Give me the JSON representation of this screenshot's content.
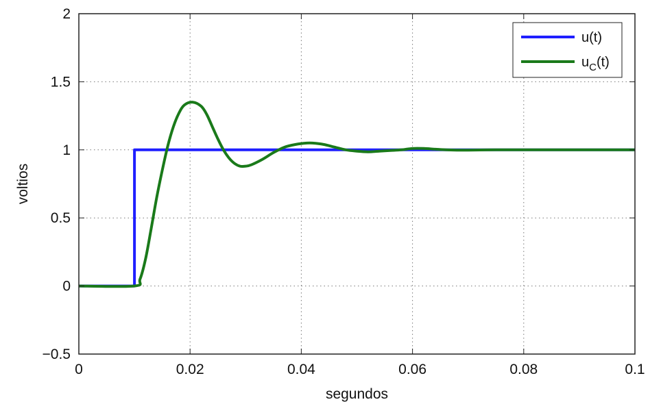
{
  "chart_data": {
    "type": "line",
    "title": "",
    "xlabel": "segundos",
    "ylabel": "voltios",
    "xlim": [
      0,
      0.1
    ],
    "ylim": [
      -0.5,
      2
    ],
    "x_ticks": [
      0,
      0.02,
      0.04,
      0.06,
      0.08,
      0.1
    ],
    "x_tick_labels": [
      "0",
      "0.02",
      "0.04",
      "0.06",
      "0.08",
      "0.1"
    ],
    "y_ticks": [
      -0.5,
      0,
      0.5,
      1,
      1.5,
      2
    ],
    "y_tick_labels": [
      "−0.5",
      "0",
      "0.5",
      "1",
      "1.5",
      "2"
    ],
    "grid": true,
    "legend_position": "top-right",
    "series": [
      {
        "name": "u(t)",
        "color": "#1f1fff",
        "x": [
          0,
          0.01,
          0.01,
          0.1
        ],
        "y": [
          0,
          0,
          1,
          1
        ]
      },
      {
        "name": "u_C(t)",
        "legend_main": "u",
        "legend_sub": "C",
        "legend_tail": "(t)",
        "color": "#1a7a1a",
        "x": [
          0,
          0.01,
          0.011,
          0.012,
          0.013,
          0.014,
          0.015,
          0.016,
          0.017,
          0.018,
          0.019,
          0.0205,
          0.022,
          0.023,
          0.024,
          0.025,
          0.026,
          0.027,
          0.028,
          0.029,
          0.03,
          0.031,
          0.033,
          0.035,
          0.037,
          0.039,
          0.041,
          0.042,
          0.044,
          0.046,
          0.048,
          0.05,
          0.052,
          0.054,
          0.056,
          0.058,
          0.06,
          0.062,
          0.064,
          0.066,
          0.068,
          0.07,
          0.075,
          0.08,
          0.09,
          0.1
        ],
        "y": [
          0,
          0,
          0.05,
          0.2,
          0.42,
          0.65,
          0.85,
          1.03,
          1.17,
          1.27,
          1.33,
          1.35,
          1.32,
          1.26,
          1.17,
          1.08,
          1.0,
          0.94,
          0.9,
          0.88,
          0.88,
          0.89,
          0.93,
          0.98,
          1.02,
          1.04,
          1.05,
          1.05,
          1.04,
          1.02,
          1.0,
          0.99,
          0.985,
          0.99,
          0.995,
          1.0,
          1.01,
          1.01,
          1.005,
          1.0,
          0.998,
          0.998,
          1.0,
          1.0,
          1.0,
          1.0
        ]
      }
    ]
  }
}
